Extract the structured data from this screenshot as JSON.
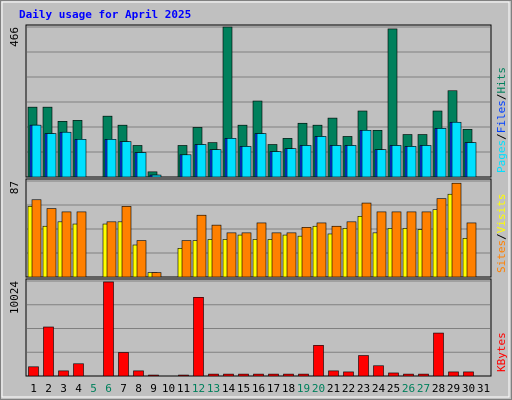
{
  "chart_data": [
    {
      "type": "bar",
      "title": "Daily usage for April 2025",
      "ylim": [
        0,
        466
      ],
      "yticks": [
        466
      ],
      "legend_separator": "/",
      "series": [
        {
          "name": "Hits",
          "color": "#00805C",
          "values": [
            217,
            217,
            173,
            176,
            0,
            189,
            161,
            98,
            16,
            0,
            98,
            154,
            107,
            466,
            161,
            236,
            101,
            120,
            167,
            161,
            183,
            126,
            205,
            145,
            460,
            132,
            132,
            205,
            268,
            148,
            0
          ]
        },
        {
          "name": "Files",
          "color": "#0040FF",
          "values": [
            161,
            135,
            139,
            117,
            0,
            117,
            110,
            76,
            6,
            0,
            69,
            101,
            85,
            120,
            95,
            135,
            79,
            88,
            98,
            126,
            98,
            98,
            145,
            85,
            98,
            95,
            98,
            151,
            170,
            107,
            0
          ]
        },
        {
          "name": "Pages",
          "color": "#00E0FF",
          "values": [
            161,
            135,
            139,
            117,
            0,
            117,
            110,
            76,
            6,
            0,
            69,
            101,
            85,
            120,
            95,
            135,
            79,
            88,
            98,
            126,
            98,
            98,
            145,
            85,
            98,
            95,
            98,
            151,
            170,
            107,
            0
          ]
        }
      ]
    },
    {
      "type": "bar",
      "ylim": [
        0,
        87
      ],
      "yticks": [
        87
      ],
      "legend_separator": "/",
      "series": [
        {
          "name": "Visits",
          "color": "#FFFF00",
          "values": [
            64,
            46,
            50,
            48,
            0,
            48,
            50,
            29,
            4,
            0,
            26,
            33,
            34,
            34,
            38,
            34,
            34,
            38,
            37,
            46,
            39,
            44,
            55,
            40,
            44,
            44,
            43,
            61,
            75,
            35,
            0
          ]
        },
        {
          "name": "Sites",
          "color": "#FF8000",
          "values": [
            70,
            62,
            59,
            59,
            0,
            50,
            64,
            33,
            4,
            0,
            33,
            56,
            47,
            40,
            40,
            49,
            40,
            40,
            45,
            49,
            46,
            50,
            67,
            59,
            59,
            59,
            59,
            71,
            85,
            49,
            0
          ]
        }
      ]
    },
    {
      "type": "bar",
      "ylim": [
        0,
        10024
      ],
      "yticks": [
        10024
      ],
      "legend_separator": "/",
      "categories": [
        "1",
        "2",
        "3",
        "4",
        "5",
        "6",
        "7",
        "8",
        "9",
        "10",
        "11",
        "12",
        "13",
        "14",
        "15",
        "16",
        "17",
        "18",
        "19",
        "20",
        "21",
        "22",
        "23",
        "24",
        "25",
        "26",
        "27",
        "28",
        "29",
        "30",
        "31"
      ],
      "category_colors": [
        "#000000",
        "#000000",
        "#000000",
        "#000000",
        "#00805C",
        "#00805C",
        "#000000",
        "#000000",
        "#000000",
        "#000000",
        "#000000",
        "#00805C",
        "#00805C",
        "#000000",
        "#000000",
        "#000000",
        "#000000",
        "#000000",
        "#00805C",
        "#00805C",
        "#000000",
        "#000000",
        "#000000",
        "#000000",
        "#000000",
        "#00805C",
        "#00805C",
        "#000000",
        "#000000",
        "#000000",
        "#000000"
      ],
      "series": [
        {
          "name": "KBytes",
          "color": "#FF0000",
          "values": [
            970,
            5170,
            540,
            1290,
            0,
            9920,
            2480,
            540,
            100,
            0,
            100,
            8300,
            200,
            200,
            200,
            200,
            200,
            200,
            200,
            3230,
            540,
            430,
            2160,
            1080,
            320,
            200,
            200,
            4530,
            430,
            430,
            0
          ]
        }
      ]
    }
  ]
}
